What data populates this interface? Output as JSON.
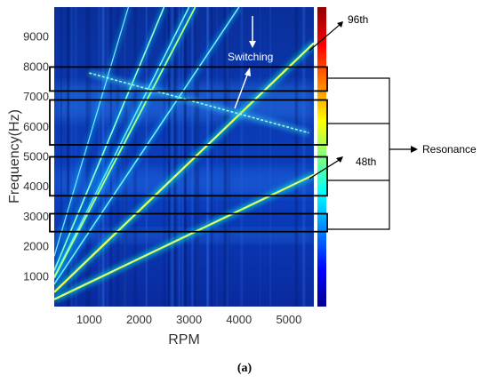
{
  "chart_data": {
    "type": "heatmap",
    "xlabel": "RPM",
    "ylabel": "Frequency(Hz)",
    "xlim": [
      300,
      5500
    ],
    "ylim": [
      0,
      10000
    ],
    "x_ticks": [
      1000,
      2000,
      3000,
      4000,
      5000
    ],
    "y_ticks": [
      1000,
      2000,
      3000,
      4000,
      5000,
      6000,
      7000,
      8000,
      9000
    ],
    "colormap": "jet",
    "orders": [
      {
        "label": "48th",
        "order": 48
      },
      {
        "label": "96th",
        "order": 96
      }
    ],
    "resonance_bands_hz": [
      [
        7200,
        8000
      ],
      [
        5400,
        6900
      ],
      [
        3700,
        5000
      ],
      [
        2500,
        3100
      ]
    ],
    "annotations": {
      "switching": "Switching",
      "order_high": "96th",
      "order_low": "48th",
      "resonance": "Resonance"
    },
    "caption": "(a)"
  }
}
